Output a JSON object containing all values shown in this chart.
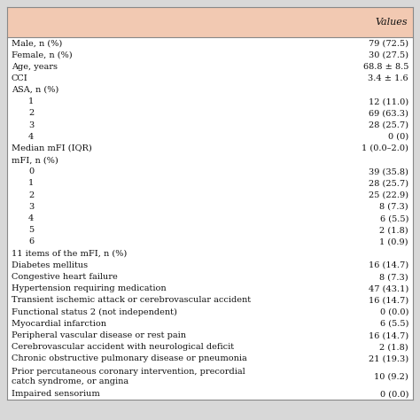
{
  "header_bg": "#F2C9B2",
  "header_text": "Values",
  "table_bg": "#FFFFFF",
  "outer_bg": "#D8D8D8",
  "rows": [
    {
      "label": "Male, n (%)",
      "value": "79 (72.5)",
      "indent": 0
    },
    {
      "label": "Female, n (%)",
      "value": "30 (27.5)",
      "indent": 0
    },
    {
      "label": "Age, years",
      "value": "68.8 ± 8.5",
      "indent": 0
    },
    {
      "label": "CCI",
      "value": "3.4 ± 1.6",
      "indent": 0
    },
    {
      "label": "ASA, n (%)",
      "value": "",
      "indent": 0
    },
    {
      "label": "1",
      "value": "12 (11.0)",
      "indent": 1
    },
    {
      "label": "2",
      "value": "69 (63.3)",
      "indent": 1
    },
    {
      "label": "3",
      "value": "28 (25.7)",
      "indent": 1
    },
    {
      "label": "4",
      "value": "0 (0)",
      "indent": 1
    },
    {
      "label": "Median mFI (IQR)",
      "value": "1 (0.0–2.0)",
      "indent": 0
    },
    {
      "label": "mFI, n (%)",
      "value": "",
      "indent": 0
    },
    {
      "label": "0",
      "value": "39 (35.8)",
      "indent": 1
    },
    {
      "label": "1",
      "value": "28 (25.7)",
      "indent": 1
    },
    {
      "label": "2",
      "value": "25 (22.9)",
      "indent": 1
    },
    {
      "label": "3",
      "value": "8 (7.3)",
      "indent": 1
    },
    {
      "label": "4",
      "value": "6 (5.5)",
      "indent": 1
    },
    {
      "label": "5",
      "value": "2 (1.8)",
      "indent": 1
    },
    {
      "label": "6",
      "value": "1 (0.9)",
      "indent": 1
    },
    {
      "label": "11 items of the mFI, n (%)",
      "value": "",
      "indent": 0
    },
    {
      "label": "Diabetes mellitus",
      "value": "16 (14.7)",
      "indent": 0
    },
    {
      "label": "Congestive heart failure",
      "value": "8 (7.3)",
      "indent": 0
    },
    {
      "label": "Hypertension requiring medication",
      "value": "47 (43.1)",
      "indent": 0
    },
    {
      "label": "Transient ischemic attack or cerebrovascular accident",
      "value": "16 (14.7)",
      "indent": 0
    },
    {
      "label": "Functional status 2 (not independent)",
      "value": "0 (0.0)",
      "indent": 0
    },
    {
      "label": "Myocardial infarction",
      "value": "6 (5.5)",
      "indent": 0
    },
    {
      "label": "Peripheral vascular disease or rest pain",
      "value": "16 (14.7)",
      "indent": 0
    },
    {
      "label": "Cerebrovascular accident with neurological deficit",
      "value": "2 (1.8)",
      "indent": 0
    },
    {
      "label": "Chronic obstructive pulmonary disease or pneumonia",
      "value": "21 (19.3)",
      "indent": 0
    },
    {
      "label": "Prior percutaneous coronary intervention, precordial\ncatch syndrome, or angina",
      "value": "10 (9.2)",
      "indent": 0
    },
    {
      "label": "Impaired sensorium",
      "value": "0 (0.0)",
      "indent": 0
    }
  ],
  "font_size": 7.0,
  "header_font_size": 8.0,
  "text_color": "#111111",
  "border_color": "#888888",
  "indent_size": 0.05
}
